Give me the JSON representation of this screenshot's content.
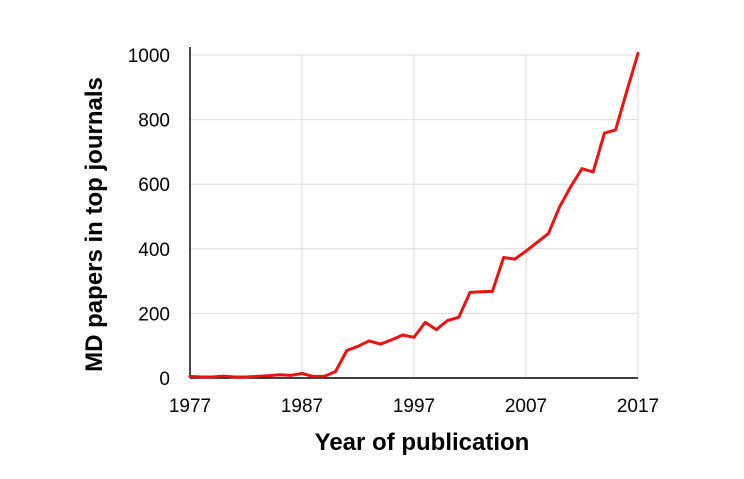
{
  "chart_data": {
    "type": "line",
    "title": "",
    "xlabel": "Year of publication",
    "ylabel": "MD papers in top journals",
    "xlim": [
      1977,
      2017
    ],
    "ylim": [
      0,
      1000
    ],
    "xticks": [
      1977,
      1987,
      1997,
      2007,
      2017
    ],
    "yticks": [
      0,
      200,
      400,
      600,
      800,
      1000
    ],
    "grid": true,
    "legend": "none",
    "series": [
      {
        "color": "#ee1111",
        "x": [
          1977,
          1978,
          1979,
          1980,
          1981,
          1982,
          1983,
          1984,
          1985,
          1986,
          1987,
          1988,
          1989,
          1990,
          1991,
          1992,
          1993,
          1994,
          1995,
          1996,
          1997,
          1998,
          1999,
          2000,
          2001,
          2002,
          2003,
          2004,
          2005,
          2006,
          2007,
          2008,
          2009,
          2010,
          2011,
          2012,
          2013,
          2014,
          2015,
          2016,
          2017
        ],
        "y": [
          5,
          3,
          3,
          6,
          3,
          3,
          5,
          7,
          10,
          8,
          14,
          5,
          5,
          20,
          85,
          98,
          115,
          105,
          118,
          133,
          126,
          172,
          150,
          178,
          188,
          265,
          267,
          268,
          373,
          368,
          393,
          420,
          447,
          530,
          593,
          648,
          638,
          758,
          768,
          888,
          1005
        ]
      }
    ]
  }
}
